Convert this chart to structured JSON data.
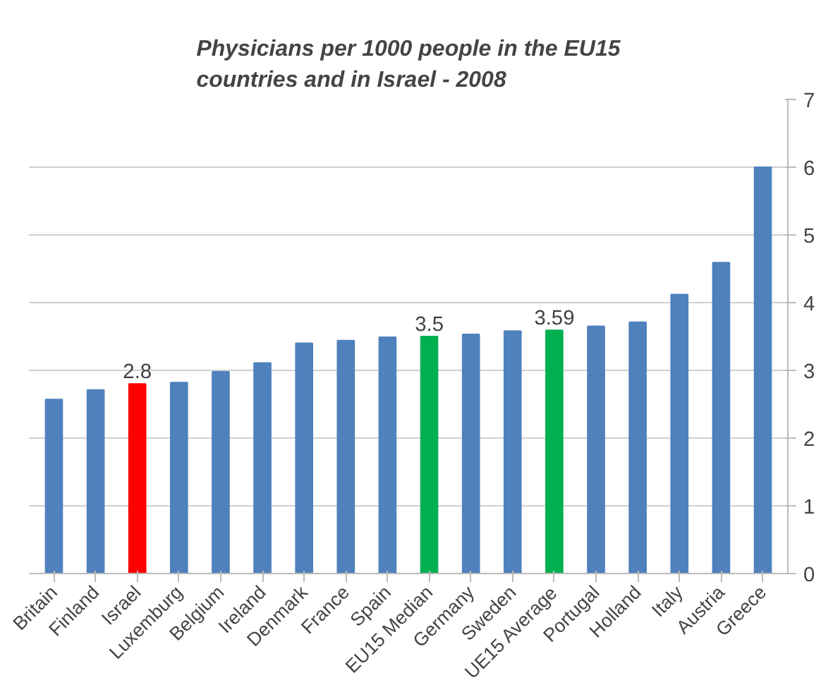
{
  "chart_data": {
    "type": "bar",
    "title": "Physicians per 1000 people in the EU15\ncountries and in Israel - 2008",
    "categories": [
      "Britain",
      "Finland",
      "Israel",
      "Luxemburg",
      "Belgium",
      "Ireland",
      "Denmark",
      "France",
      "Spain",
      "EU15 Median",
      "Germany",
      "Sweden",
      "UE15 Average",
      "Portugal",
      "Holland",
      "Italy",
      "Austria",
      "Greece"
    ],
    "values": [
      2.57,
      2.71,
      2.8,
      2.82,
      2.98,
      3.11,
      3.4,
      3.44,
      3.49,
      3.5,
      3.53,
      3.58,
      3.59,
      3.65,
      3.71,
      4.12,
      4.59,
      6.0
    ],
    "colors": [
      "#4f81bd",
      "#4f81bd",
      "#ff0000",
      "#4f81bd",
      "#4f81bd",
      "#4f81bd",
      "#4f81bd",
      "#4f81bd",
      "#4f81bd",
      "#00b050",
      "#4f81bd",
      "#4f81bd",
      "#00b050",
      "#4f81bd",
      "#4f81bd",
      "#4f81bd",
      "#4f81bd",
      "#4f81bd"
    ],
    "value_labels": [
      null,
      null,
      "2.8",
      null,
      null,
      null,
      null,
      null,
      null,
      "3.5",
      null,
      null,
      "3.59",
      null,
      null,
      null,
      null,
      null
    ],
    "ylim": [
      0,
      7
    ],
    "yticks": [
      0,
      1,
      2,
      3,
      4,
      5,
      6,
      7
    ],
    "grid": "y"
  }
}
